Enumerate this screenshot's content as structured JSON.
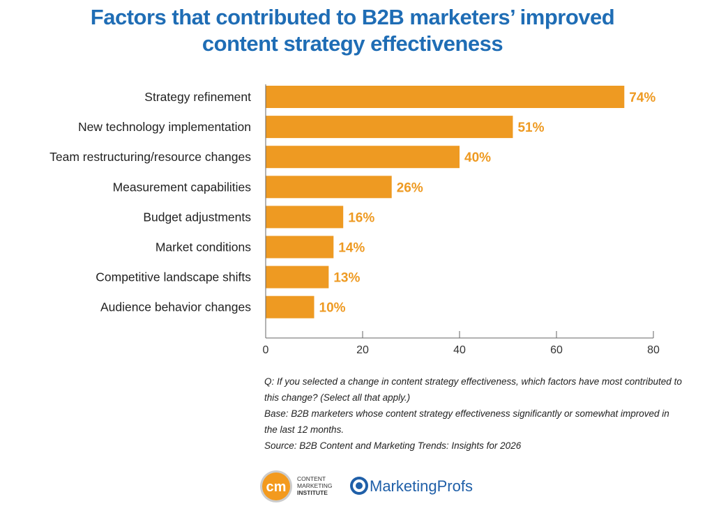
{
  "title_line1": "Factors that contributed to B2B marketers’ improved",
  "title_line2": "content strategy effectiveness",
  "chart_data": {
    "type": "bar",
    "orientation": "horizontal",
    "title": "Factors that contributed to B2B marketers’ improved content strategy effectiveness",
    "categories": [
      "Strategy refinement",
      "New technology implementation",
      "Team restructuring/resource changes",
      "Measurement capabilities",
      "Budget adjustments",
      "Market conditions",
      "Competitive landscape shifts",
      "Audience behavior changes"
    ],
    "values": [
      74,
      51,
      40,
      26,
      16,
      14,
      13,
      10
    ],
    "data_labels": [
      "74%",
      "51%",
      "40%",
      "26%",
      "16%",
      "14%",
      "13%",
      "10%"
    ],
    "xlim": [
      0,
      80
    ],
    "xticks": [
      0,
      20,
      40,
      60,
      80
    ],
    "grid": false,
    "bar_color": "#ee9a22",
    "label_color": "#ee9a22"
  },
  "notes": {
    "question": "Q: If you selected a change in content strategy effectiveness, which factors have most contributed to this change? (Select all that apply.)",
    "base": "Base: B2B marketers whose content strategy effectiveness significantly or somewhat improved in the last 12 months.",
    "source": "Source: B2B Content and Marketing Trends: Insights for 2026"
  },
  "logos": {
    "cmi": "CONTENT MARKETING INSTITUTE",
    "mp": "MarketingProfs"
  }
}
